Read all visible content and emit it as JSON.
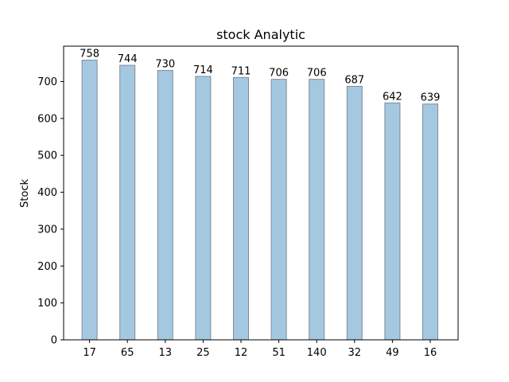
{
  "chart_data": {
    "type": "bar",
    "title": "stock Analytic",
    "xlabel": "",
    "ylabel": "Stock",
    "categories": [
      "17",
      "65",
      "13",
      "25",
      "12",
      "51",
      "140",
      "32",
      "49",
      "16"
    ],
    "values": [
      758,
      744,
      730,
      714,
      711,
      706,
      706,
      687,
      642,
      639
    ],
    "data_labels": [
      "758",
      "744",
      "730",
      "714",
      "711",
      "706",
      "706",
      "687",
      "642",
      "639"
    ],
    "yticks": [
      "0",
      "100",
      "200",
      "300",
      "400",
      "500",
      "600",
      "700"
    ],
    "ylim": [
      0,
      795.9
    ],
    "grid": false,
    "legend": "none",
    "bar_color": "#a5c8e1",
    "bar_edge_color": "#7f8a99"
  }
}
